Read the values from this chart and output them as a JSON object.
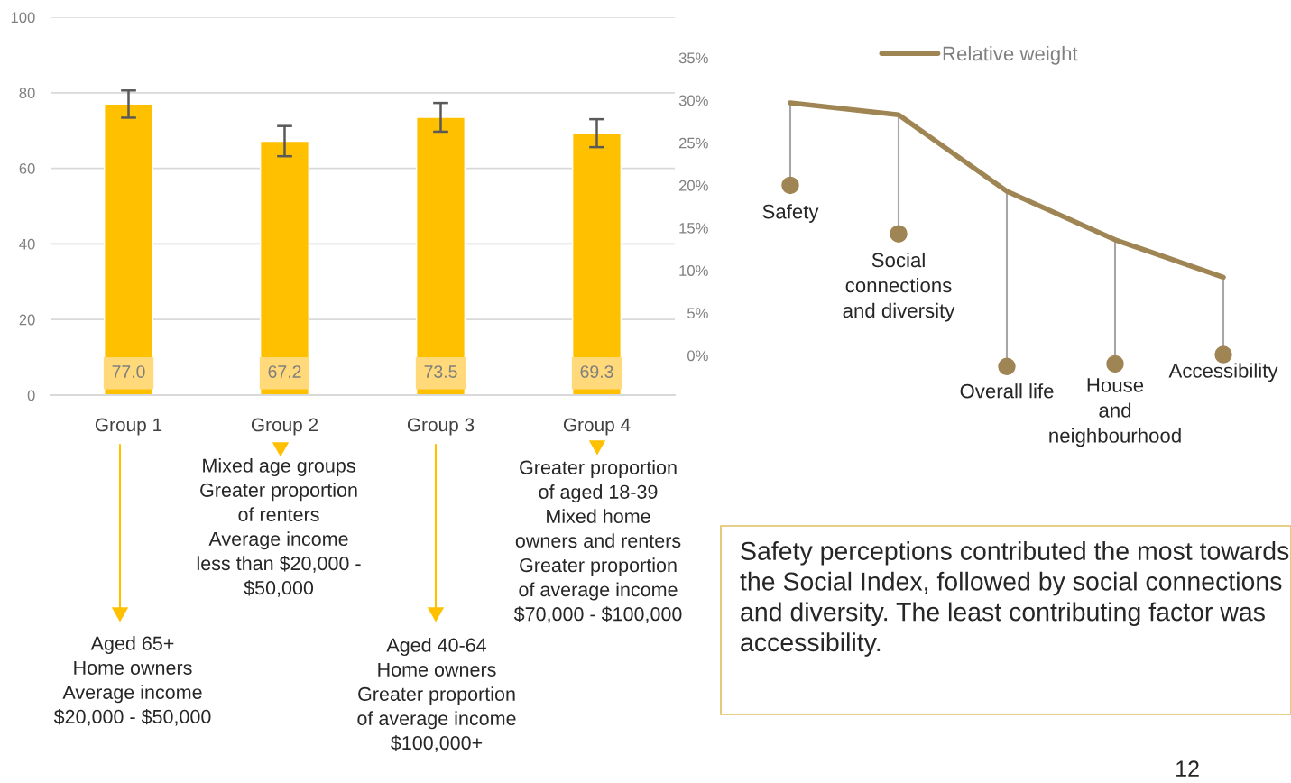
{
  "chart_data": [
    {
      "type": "bar",
      "categories": [
        "Group 1",
        "Group 2",
        "Group 3",
        "Group 4"
      ],
      "values": [
        77.0,
        67.2,
        73.5,
        69.3
      ],
      "errors": [
        3.6,
        4.0,
        3.8,
        3.7
      ],
      "color": "#ffc000",
      "value_labels": [
        "77.0",
        "67.2",
        "73.5",
        "69.3"
      ],
      "ylim": [
        0,
        100
      ],
      "yticks": [
        0,
        20,
        40,
        60,
        80,
        100
      ],
      "grid": "y",
      "annotations": [
        "Aged 65+\nHome owners\nAverage income\n$20,000 - $50,000",
        "Mixed age groups\nGreater proportion\nof renters\nAverage income\nless than $20,000 -\n$50,000",
        "Aged 40-64\nHome owners\nGreater proportion\nof average income\n$100,000+",
        "Greater proportion\nof aged 18-39\nMixed home\nowners and renters\nGreater proportion\nof average income\n$70,000 - $100,000"
      ]
    },
    {
      "type": "line",
      "categories": [
        "Safety",
        "Social\nconnections\nand diversity",
        "Overall life",
        "House\nand\nneighbourhood",
        "Accessibility"
      ],
      "series": [
        {
          "name": "Relative weight",
          "color": "#a08554",
          "values": [
            29.7,
            28.3,
            19.3,
            13.6,
            9.2
          ]
        }
      ],
      "ylim": [
        0,
        35
      ],
      "yticks": [
        {
          "value": 0,
          "label": "0%"
        },
        {
          "value": 5,
          "label": "5%"
        },
        {
          "value": 10,
          "label": "10%"
        },
        {
          "value": 15,
          "label": "15%"
        },
        {
          "value": 20,
          "label": "20%"
        },
        {
          "value": 25,
          "label": "25%"
        },
        {
          "value": 30,
          "label": "30%"
        },
        {
          "value": 35,
          "label": "35%"
        }
      ],
      "grid": false,
      "legend": "top",
      "marker": "none",
      "tick_labels": "y",
      "annotations": [
        "Safety perceptions contributed the most towards the Social Index, followed by social connections and diversity. The least contributing factor was accessibility.",
        "12"
      ]
    }
  ]
}
